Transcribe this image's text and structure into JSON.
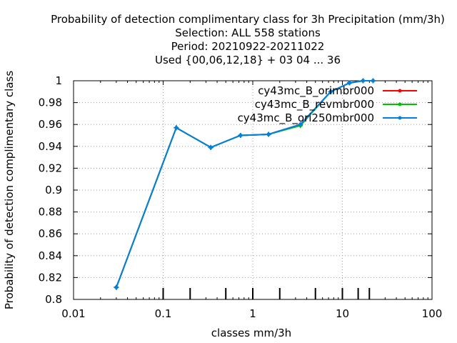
{
  "chart_data": {
    "type": "line",
    "title_lines": [
      "Probability of detection complimentary class  for 3h Precipitation (mm/3h)",
      "Selection: ALL    558 stations",
      "Period: 20210922-20211022",
      "Used {00,06,12,18} + 03 04 ... 36"
    ],
    "xlabel": "classes mm/3h",
    "ylabel": "Probability of detection complimentary class",
    "x_scale": "log",
    "xlim": [
      0.01,
      100
    ],
    "ylim": [
      0.8,
      1.0
    ],
    "x_ticks": [
      0.01,
      0.1,
      1,
      10,
      100
    ],
    "x_tick_labels": [
      "0.01",
      "0.1",
      "1",
      "10",
      "100"
    ],
    "y_ticks": [
      0.8,
      0.82,
      0.84,
      0.86,
      0.88,
      0.9,
      0.92,
      0.94,
      0.96,
      0.98,
      1.0
    ],
    "y_tick_labels": [
      "0.8",
      "0.82",
      "0.84",
      "0.86",
      "0.88",
      "0.9",
      "0.92",
      "0.94",
      "0.96",
      "0.98",
      "1"
    ],
    "class_marks": [
      0.1,
      0.2,
      0.5,
      1,
      2,
      5,
      10,
      15,
      20
    ],
    "grid": true,
    "legend_position": "top-right",
    "x": [
      0.03,
      0.14,
      0.34,
      0.73,
      1.5,
      3.4,
      7.4,
      12,
      17,
      22
    ],
    "series": [
      {
        "name": "cy43mc_B_orimbr000",
        "color": "#ff0000",
        "values": [
          0.811,
          0.957,
          0.939,
          0.95,
          0.951,
          0.96,
          0.99,
          0.998,
          1.0,
          1.0
        ]
      },
      {
        "name": "cy43mc_B_revmbr000",
        "color": "#00c000",
        "values": [
          0.811,
          0.957,
          0.939,
          0.95,
          0.951,
          0.959,
          0.99,
          0.998,
          1.0,
          1.0
        ]
      },
      {
        "name": "cy43mc_B_ori250mbr000",
        "color": "#0080e0",
        "values": [
          0.811,
          0.957,
          0.939,
          0.95,
          0.951,
          0.96,
          0.99,
          0.998,
          1.0,
          1.0
        ]
      }
    ]
  }
}
